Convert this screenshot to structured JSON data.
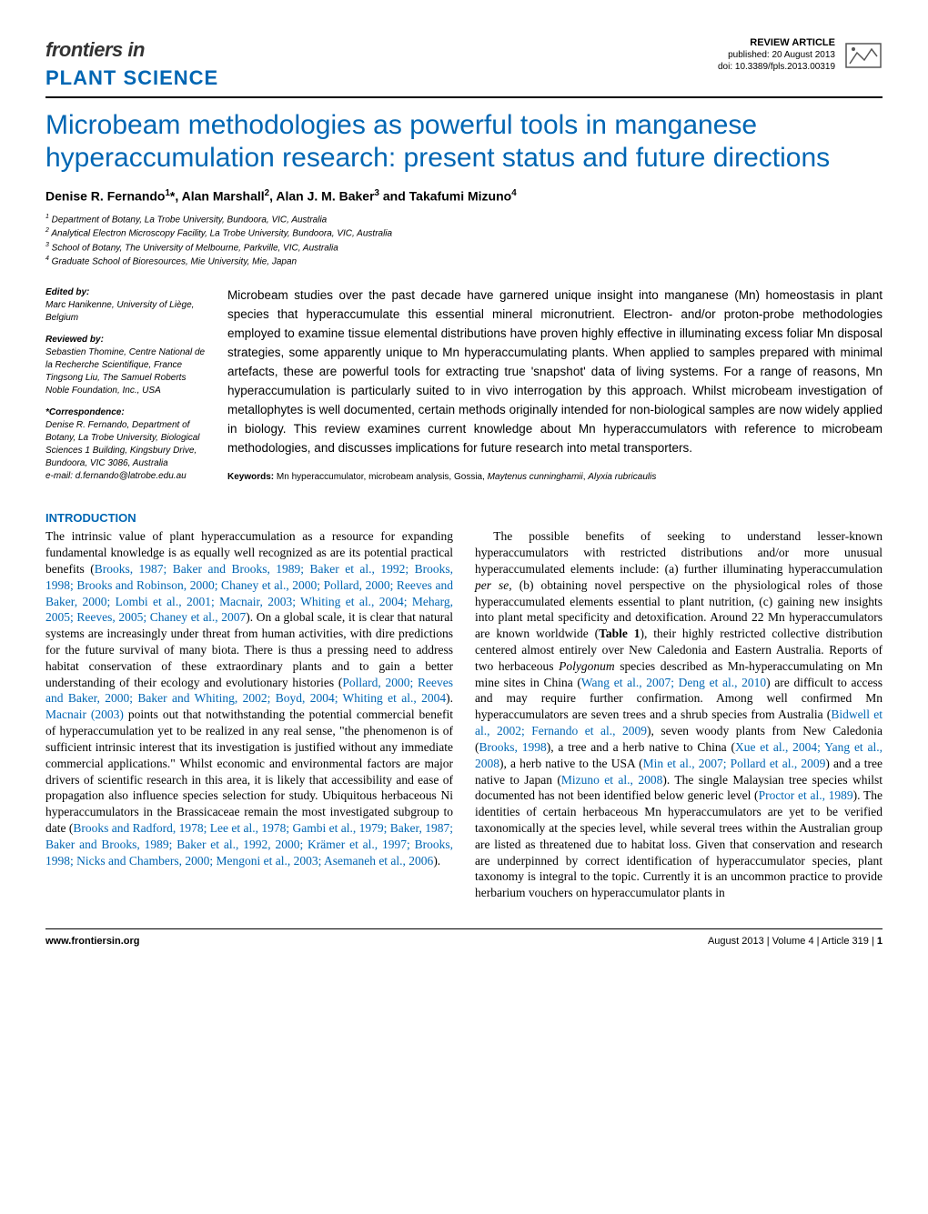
{
  "header": {
    "frontiers": "frontiers in",
    "journal": "PLANT SCIENCE",
    "article_type": "REVIEW ARTICLE",
    "published": "published: 20 August 2013",
    "doi": "doi: 10.3389/fpls.2013.00319"
  },
  "title": "Microbeam methodologies as powerful tools in manganese hyperaccumulation research: present status and future directions",
  "authors_html": "Denise R. Fernando<sup>1</sup>*, Alan Marshall<sup>2</sup>, Alan J. M. Baker<sup>3</sup> and Takafumi Mizuno<sup>4</sup>",
  "affiliations": [
    "Department of Botany, La Trobe University, Bundoora, VIC, Australia",
    "Analytical Electron Microscopy Facility, La Trobe University, Bundoora, VIC, Australia",
    "School of Botany, The University of Melbourne, Parkville, VIC, Australia",
    "Graduate School of Bioresources, Mie University, Mie, Japan"
  ],
  "sidebar": {
    "edited_label": "Edited by:",
    "edited_by": "Marc Hanikenne, University of Liège, Belgium",
    "reviewed_label": "Reviewed by:",
    "reviewed_by": "Sebastien Thomine, Centre National de la Recherche Scientifique, France\nTingsong Liu, The Samuel Roberts Noble Foundation, Inc., USA",
    "corr_label": "*Correspondence:",
    "corr": "Denise R. Fernando, Department of Botany, La Trobe University, Biological Sciences 1 Building, Kingsbury Drive, Bundoora, VIC 3086, Australia\ne-mail: d.fernando@latrobe.edu.au"
  },
  "abstract": "Microbeam studies over the past decade have garnered unique insight into manganese (Mn) homeostasis in plant species that hyperaccumulate this essential mineral micronutrient. Electron- and/or proton-probe methodologies employed to examine tissue elemental distributions have proven highly effective in illuminating excess foliar Mn disposal strategies, some apparently unique to Mn hyperaccumulating plants. When applied to samples prepared with minimal artefacts, these are powerful tools for extracting true 'snapshot' data of living systems. For a range of reasons, Mn hyperaccumulation is particularly suited to in vivo interrogation by this approach. Whilst microbeam investigation of metallophytes is well documented, certain methods originally intended for non-biological samples are now widely applied in biology. This review examines current knowledge about Mn hyperaccumulators with reference to microbeam methodologies, and discusses implications for future research into metal transporters.",
  "keywords_label": "Keywords:",
  "keywords": "Mn hyperaccumulator, microbeam analysis, Gossia, Maytenus cunninghamii, Alyxia rubricaulis",
  "intro_heading": "INTRODUCTION",
  "col_left": {
    "p1a": "The intrinsic value of plant hyperaccumulation as a resource for expanding fundamental knowledge is as equally well recognized as are its potential practical benefits (",
    "p1_refs1": "Brooks, 1987; Baker and Brooks, 1989; Baker et al., 1992; Brooks, 1998; Brooks and Robinson, 2000; Chaney et al., 2000; Pollard, 2000; Reeves and Baker, 2000; Lombi et al., 2001; Macnair, 2003; Whiting et al., 2004; Meharg, 2005; Reeves, 2005; Chaney et al., 2007",
    "p1b": "). On a global scale, it is clear that natural systems are increasingly under threat from human activities, with dire predictions for the future survival of many biota. There is thus a pressing need to address habitat conservation of these extraordinary plants and to gain a better understanding of their ecology and evolutionary histories (",
    "p1_refs2": "Pollard, 2000; Reeves and Baker, 2000; Baker and Whiting, 2002; Boyd, 2004; Whiting et al., 2004",
    "p1c": "). ",
    "p1_ref3": "Macnair (2003)",
    "p1d": " points out that notwithstanding the potential commercial benefit of hyperaccumulation yet to be realized in any real sense, \"the phenomenon is of sufficient intrinsic interest that its investigation is justified without any immediate commercial applications.\" Whilst economic and environmental factors are major drivers of scientific research in this area, it is likely that accessibility and ease of propagation also influence species selection for study. Ubiquitous herbaceous Ni hyperaccumulators in the Brassicaceae remain the most investigated subgroup to date (",
    "p1_refs4": "Brooks and Radford, 1978; Lee et al., 1978; Gambi et al., 1979; Baker, 1987; Baker and Brooks, 1989; Baker et al., 1992, 2000; Krämer et al., 1997; Brooks, 1998; Nicks and Chambers, 2000; Mengoni et al., 2003; Asemaneh et al., 2006",
    "p1e": ")."
  },
  "col_right": {
    "p1a": "The possible benefits of seeking to understand lesser-known hyperaccumulators with restricted distributions and/or more unusual hyperaccumulated elements include: (a) further illuminating hyperaccumulation ",
    "p1_ital1": "per se",
    "p1b": ", (b) obtaining novel perspective on the physiological roles of those hyperaccumulated elements essential to plant nutrition, (c) gaining new insights into plant metal specificity and detoxification. Around 22 Mn hyperaccumulators are known worldwide (",
    "p1_bold1": "Table 1",
    "p1c": "), their highly restricted collective distribution centered almost entirely over New Caledonia and Eastern Australia. Reports of two herbaceous ",
    "p1_ital2": "Polygonum",
    "p1d": " species described as Mn-hyperaccumulating on Mn mine sites in China (",
    "p1_refs1": "Wang et al., 2007; Deng et al., 2010",
    "p1e": ") are difficult to access and may require further confirmation. Among well confirmed Mn hyperaccumulators are seven trees and a shrub species from Australia (",
    "p1_refs2": "Bidwell et al., 2002; Fernando et al., 2009",
    "p1f": "), seven woody plants from New Caledonia (",
    "p1_refs3": "Brooks, 1998",
    "p1g": "), a tree and a herb native to China (",
    "p1_refs4": "Xue et al., 2004; Yang et al., 2008",
    "p1h": "), a herb native to the USA (",
    "p1_refs5": "Min et al., 2007; Pollard et al., 2009",
    "p1i": ") and a tree native to Japan (",
    "p1_refs6": "Mizuno et al., 2008",
    "p1j": "). The single Malaysian tree species whilst documented has not been identified below generic level (",
    "p1_refs7": "Proctor et al., 1989",
    "p1k": "). The identities of certain herbaceous Mn hyperaccumulators are yet to be verified taxonomically at the species level, while several trees within the Australian group are listed as threatened due to habitat loss. Given that conservation and research are underpinned by correct identification of hyperaccumulator species, plant taxonomy is integral to the topic. Currently it is an uncommon practice to provide herbarium vouchers on hyperaccumulator plants in"
  },
  "footer": {
    "url": "www.frontiersin.org",
    "right": "August 2013 | Volume 4 | Article 319 | ",
    "page": "1"
  },
  "colors": {
    "brand_blue": "#0066b3",
    "text": "#000000",
    "bg": "#ffffff"
  }
}
